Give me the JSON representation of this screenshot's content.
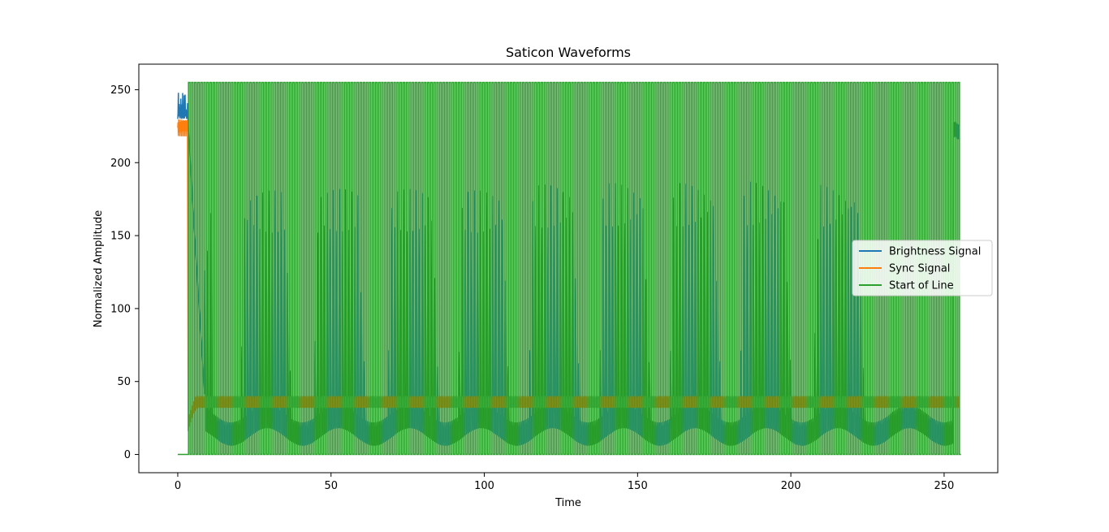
{
  "chart_data": {
    "type": "line",
    "title": "Saticon Waveforms",
    "xlabel": "Time",
    "ylabel": "Normalized Amplitude",
    "xlim": [
      -12.7,
      267.5
    ],
    "ylim": [
      -12.5,
      267.5
    ],
    "xticks": [
      0,
      50,
      100,
      150,
      200,
      250
    ],
    "yticks": [
      0,
      50,
      100,
      150,
      200,
      250
    ],
    "grid": false,
    "legend": "center-right",
    "x_range": [
      0,
      255
    ],
    "series": [
      {
        "name": "Brightness Signal",
        "color": "#1f77b4",
        "description_points": {
          "start_level": 236,
          "start_spike_max": 249,
          "settle_level": 20,
          "settle_min": 12,
          "settle_max": 30,
          "end_level": 222
        }
      },
      {
        "name": "Sync Signal",
        "color": "#ff7f0e",
        "description_points": {
          "start_level": 224,
          "start_spike_max": 230,
          "settle_min": 32,
          "settle_max": 40,
          "end_level": 36
        }
      },
      {
        "name": "Start of Line",
        "color": "#2ca02c",
        "description_points": {
          "low": 0,
          "high": 255,
          "active_from": 3.5,
          "active_to": 254.5,
          "pulse_period": 1
        }
      }
    ],
    "envelope_peaks": [
      {
        "x": 10,
        "y": 166
      },
      {
        "x": 25,
        "y": 181
      },
      {
        "x": 49,
        "y": 182
      },
      {
        "x": 73,
        "y": 182
      },
      {
        "x": 96,
        "y": 181
      },
      {
        "x": 119,
        "y": 185
      },
      {
        "x": 142,
        "y": 186
      },
      {
        "x": 165,
        "y": 186
      },
      {
        "x": 188,
        "y": 187
      },
      {
        "x": 212,
        "y": 185
      }
    ]
  }
}
